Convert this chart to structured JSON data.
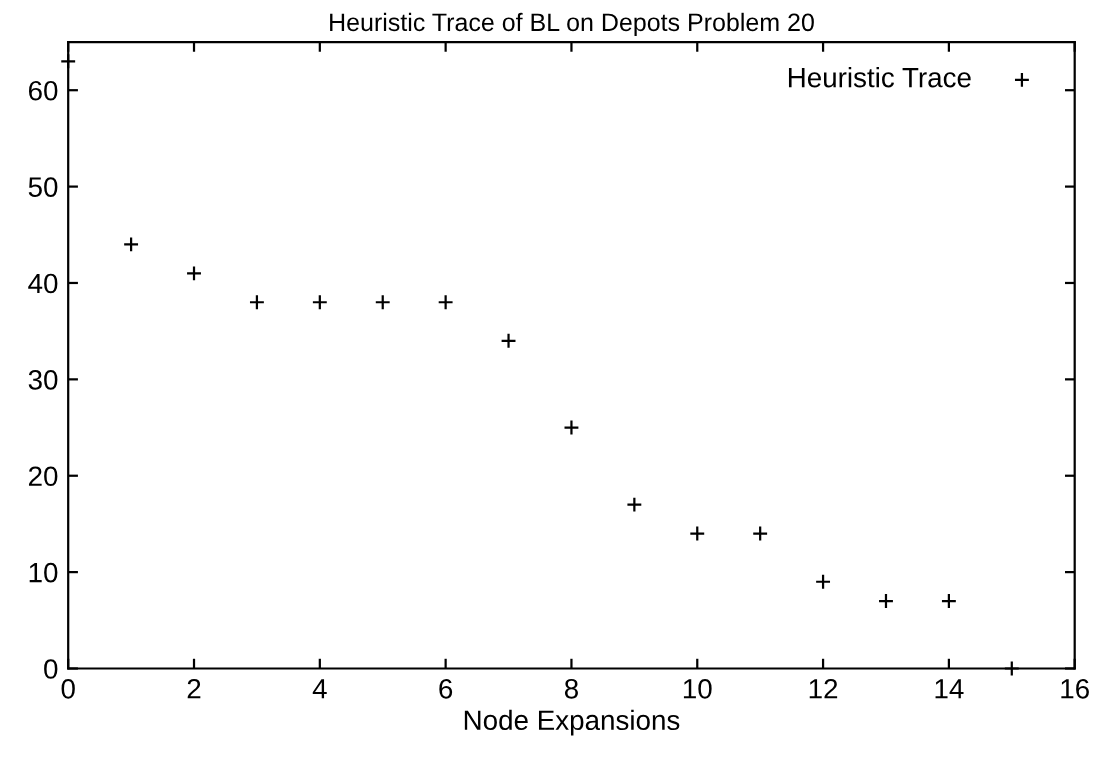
{
  "chart_data": {
    "type": "scatter",
    "title": "Heuristic Trace of BL on Depots Problem 20",
    "xlabel": "Node Expansions",
    "x": [
      0,
      1,
      2,
      3,
      4,
      5,
      6,
      7,
      8,
      9,
      10,
      11,
      12,
      13,
      14,
      15
    ],
    "series": [
      {
        "name": "Heuristic Trace",
        "color": "#000000",
        "values": [
          63,
          44,
          41,
          38,
          38,
          38,
          38,
          34,
          25,
          17,
          14,
          14,
          9,
          7,
          7,
          0
        ]
      }
    ],
    "marker": "cross",
    "xlim": [
      0,
      16
    ],
    "ylim": [
      0,
      65
    ],
    "xticks": [
      0,
      2,
      4,
      6,
      8,
      10,
      12,
      14,
      16
    ],
    "yticks": [
      0,
      10,
      20,
      30,
      40,
      50,
      60
    ],
    "legend": "top right",
    "grid": false
  }
}
